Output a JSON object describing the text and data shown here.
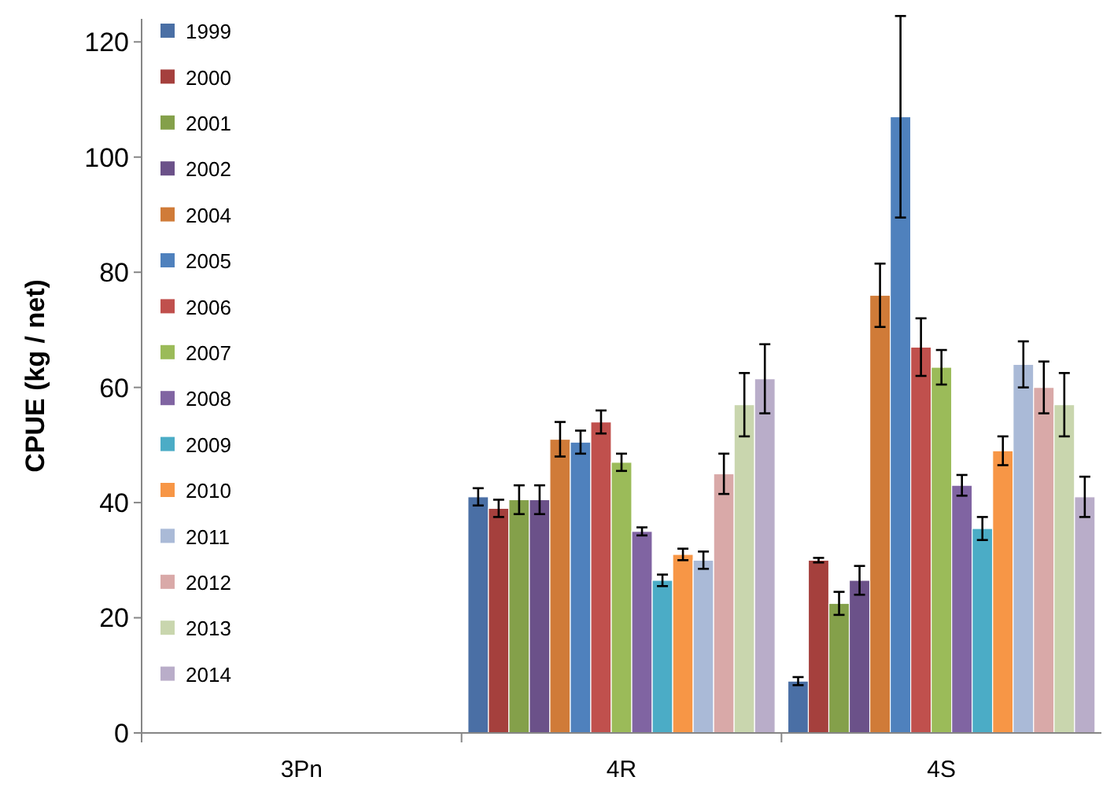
{
  "chart_data": {
    "type": "bar",
    "ylabel": "CPUE (kg / net)",
    "categories": [
      "3Pn",
      "4R",
      "4S"
    ],
    "ylim": [
      0,
      124
    ],
    "yticks": [
      0,
      20,
      40,
      60,
      80,
      100,
      120
    ],
    "grid": false,
    "legend": "top left",
    "series": [
      {
        "name": "1999",
        "color": "#4a6fa5",
        "values": [
          null,
          41,
          9
        ],
        "errors": [
          null,
          1.5,
          0.7
        ]
      },
      {
        "name": "2000",
        "color": "#a5403d",
        "values": [
          null,
          39,
          30
        ],
        "errors": [
          null,
          1.5,
          0.4
        ]
      },
      {
        "name": "2001",
        "color": "#84a04a",
        "values": [
          null,
          40.5,
          22.5
        ],
        "errors": [
          null,
          2.5,
          2
        ]
      },
      {
        "name": "2002",
        "color": "#6b5189",
        "values": [
          null,
          40.5,
          26.5
        ],
        "errors": [
          null,
          2.5,
          2.5
        ]
      },
      {
        "name": "2004",
        "color": "#d07b38",
        "values": [
          null,
          51,
          76
        ],
        "errors": [
          null,
          3,
          5.5
        ]
      },
      {
        "name": "2005",
        "color": "#4f81bd",
        "values": [
          null,
          50.5,
          107
        ],
        "errors": [
          null,
          2,
          17.5
        ]
      },
      {
        "name": "2006",
        "color": "#c0504d",
        "values": [
          null,
          54,
          67
        ],
        "errors": [
          null,
          2,
          5
        ]
      },
      {
        "name": "2007",
        "color": "#9bbb59",
        "values": [
          null,
          47,
          63.5
        ],
        "errors": [
          null,
          1.5,
          3
        ]
      },
      {
        "name": "2008",
        "color": "#8064a2",
        "values": [
          null,
          35,
          43
        ],
        "errors": [
          null,
          0.7,
          1.8
        ]
      },
      {
        "name": "2009",
        "color": "#4bacc6",
        "values": [
          null,
          26.5,
          35.5
        ],
        "errors": [
          null,
          1,
          2
        ]
      },
      {
        "name": "2010",
        "color": "#f79646",
        "values": [
          null,
          31,
          49
        ],
        "errors": [
          null,
          1,
          2.5
        ]
      },
      {
        "name": "2011",
        "color": "#aabad7",
        "values": [
          null,
          30,
          64
        ],
        "errors": [
          null,
          1.5,
          4
        ]
      },
      {
        "name": "2012",
        "color": "#d9a9a8",
        "values": [
          null,
          45,
          60
        ],
        "errors": [
          null,
          3.5,
          4.5
        ]
      },
      {
        "name": "2013",
        "color": "#c9d6ae",
        "values": [
          null,
          57,
          57
        ],
        "errors": [
          null,
          5.5,
          5.5
        ]
      },
      {
        "name": "2014",
        "color": "#b9adc9",
        "values": [
          null,
          61.5,
          41
        ],
        "errors": [
          null,
          6,
          3.5
        ]
      }
    ]
  }
}
